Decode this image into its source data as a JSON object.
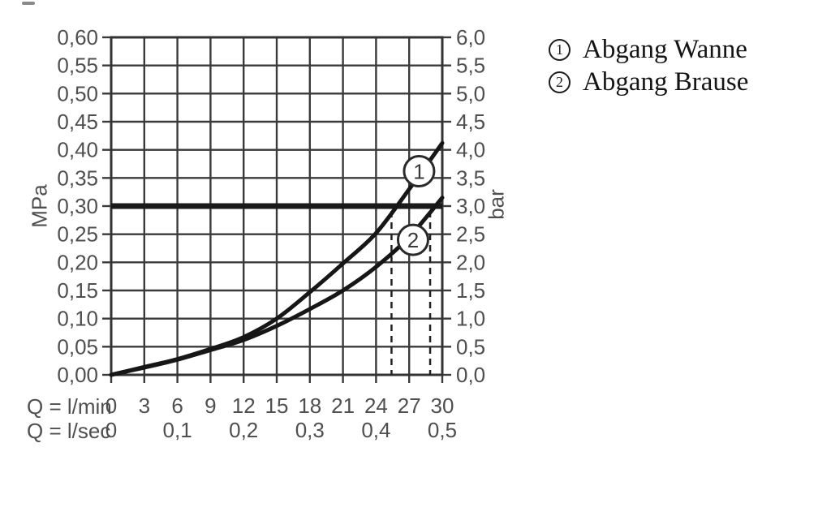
{
  "page": {
    "background": "#ffffff"
  },
  "chart_data": {
    "type": "line",
    "title": "",
    "x_axis": {
      "range": [
        0,
        30
      ],
      "gridline_step_lmin": 3,
      "rows": [
        {
          "caption": "Q = l/min",
          "tick_labels": [
            "0",
            "3",
            "6",
            "9",
            "12",
            "15",
            "18",
            "21",
            "24",
            "27",
            "30"
          ],
          "tick_values": [
            0,
            3,
            6,
            9,
            12,
            15,
            18,
            21,
            24,
            27,
            30
          ]
        },
        {
          "caption": "Q = l/sec",
          "tick_labels": [
            "0",
            "0,1",
            "0,2",
            "0,3",
            "0,4",
            "0,5"
          ],
          "tick_values": [
            0,
            6,
            12,
            18,
            24,
            30
          ]
        }
      ]
    },
    "y_axis_left": {
      "label": "MPa",
      "range": [
        0,
        0.6
      ],
      "gridline_step": 0.05,
      "tick_labels": [
        "0,60",
        "0,55",
        "0,50",
        "0,45",
        "0,40",
        "0,35",
        "0,30",
        "0,25",
        "0,20",
        "0,15",
        "0,10",
        "0,05",
        "0,00"
      ]
    },
    "y_axis_right": {
      "label": "bar",
      "range": [
        0,
        6
      ],
      "tick_labels": [
        "6,0",
        "5,5",
        "5,0",
        "4,5",
        "4,0",
        "3,5",
        "3,0",
        "2,5",
        "2,0",
        "1,5",
        "1,0",
        "0,5",
        "0,0"
      ]
    },
    "series": [
      {
        "name": "Abgang Wanne",
        "marker_symbol": "1",
        "marker_at": {
          "lmin": 27.9,
          "mpa": 0.362
        },
        "points_lmin_mpa": [
          [
            0,
            0
          ],
          [
            3,
            0.014
          ],
          [
            6,
            0.028
          ],
          [
            9,
            0.046
          ],
          [
            12,
            0.067
          ],
          [
            15,
            0.1
          ],
          [
            18,
            0.147
          ],
          [
            21,
            0.198
          ],
          [
            24,
            0.252
          ],
          [
            27,
            0.33
          ],
          [
            30,
            0.412
          ]
        ]
      },
      {
        "name": "Abgang Brause",
        "marker_symbol": "2",
        "marker_at": {
          "lmin": 27.35,
          "mpa": 0.24
        },
        "points_lmin_mpa": [
          [
            0,
            0
          ],
          [
            3,
            0.013
          ],
          [
            6,
            0.027
          ],
          [
            9,
            0.044
          ],
          [
            12,
            0.062
          ],
          [
            15,
            0.087
          ],
          [
            18,
            0.117
          ],
          [
            21,
            0.15
          ],
          [
            24,
            0.192
          ],
          [
            27,
            0.245
          ],
          [
            30,
            0.315
          ]
        ]
      }
    ],
    "reference_line": {
      "mpa": 0.3,
      "bar": 3.0
    },
    "dashed_guides_lmin": [
      25.4,
      28.9
    ],
    "grid": true,
    "legend_position": "top-right",
    "colors": {
      "curve": "#161616",
      "grid": "#3a3a3a",
      "frame": "#333333",
      "tick_label": "#4f4f4f",
      "reference_line": "#1a1a1a",
      "dashed_guide": "#222222",
      "marker_fill": "#ffffff",
      "marker_stroke": "#2a2a2a",
      "legend_text": "#141414"
    }
  },
  "legend": {
    "items": [
      {
        "symbol": "1",
        "label": "Abgang Wanne"
      },
      {
        "symbol": "2",
        "label": "Abgang Brause"
      }
    ]
  }
}
